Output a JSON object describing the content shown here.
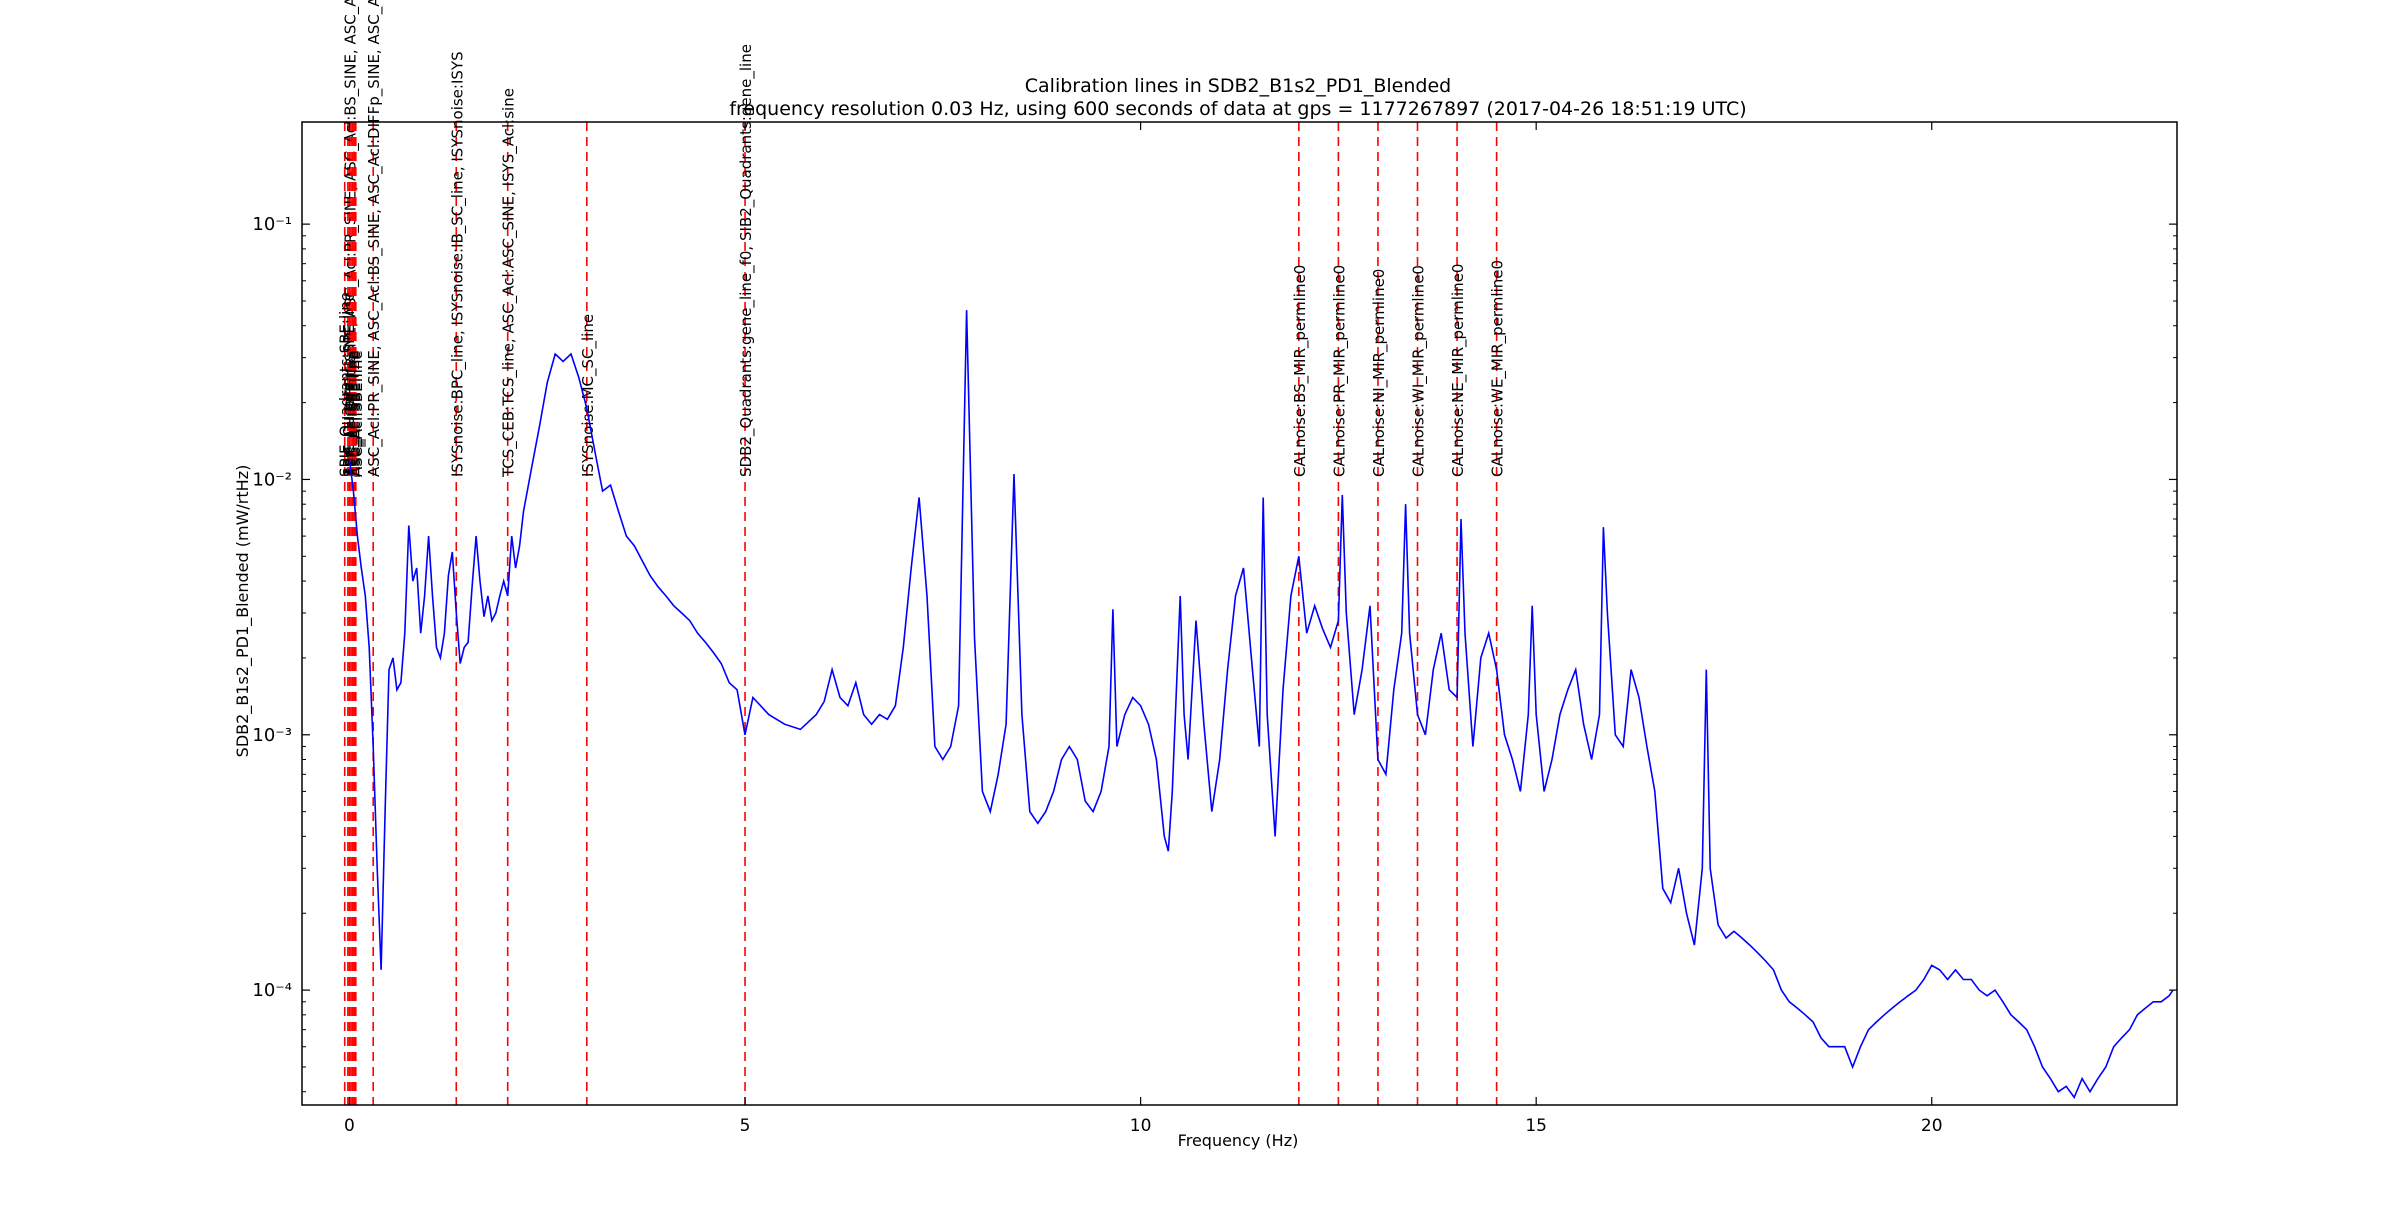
{
  "chart_data": {
    "type": "line",
    "title": "Calibration lines in SDB2_B1s2_PD1_Blended",
    "subtitle": "frequency resolution 0.03 Hz, using 600 seconds of data at gps = 1177267897 (2017-04-26 18:51:19 UTC)",
    "xlabel": "Frequency (Hz)",
    "ylabel": "SDB2_B1s2_PD1_Blended (mW/rtHz)",
    "xlim": [
      -0.6,
      23.1
    ],
    "ylim_log10": [
      -4.45,
      -0.6
    ],
    "yscale": "log",
    "grid": false,
    "x_ticks": [
      0,
      5,
      10,
      15,
      20
    ],
    "x_tick_labels": [
      "0",
      "5",
      "10",
      "15",
      "20"
    ],
    "y_ticks_log10": [
      -4,
      -3,
      -2,
      -1
    ],
    "y_tick_labels": [
      "10⁻⁴",
      "10⁻³",
      "10⁻²",
      "10⁻¹"
    ],
    "line_color": "#0000ff",
    "marker_color": "#ff0000",
    "series": [
      {
        "points": [
          [
            0.0,
            0.012
          ],
          [
            0.05,
            0.009
          ],
          [
            0.1,
            0.006
          ],
          [
            0.15,
            0.0045
          ],
          [
            0.2,
            0.0035
          ],
          [
            0.25,
            0.0022
          ],
          [
            0.3,
            0.0009
          ],
          [
            0.35,
            0.0003
          ],
          [
            0.4,
            0.00012
          ],
          [
            0.45,
            0.0005
          ],
          [
            0.5,
            0.0018
          ],
          [
            0.55,
            0.002
          ],
          [
            0.6,
            0.0015
          ],
          [
            0.65,
            0.0016
          ],
          [
            0.7,
            0.0025
          ],
          [
            0.75,
            0.0066
          ],
          [
            0.8,
            0.004
          ],
          [
            0.85,
            0.0045
          ],
          [
            0.9,
            0.0025
          ],
          [
            0.95,
            0.0035
          ],
          [
            1.0,
            0.006
          ],
          [
            1.05,
            0.0035
          ],
          [
            1.1,
            0.0022
          ],
          [
            1.15,
            0.002
          ],
          [
            1.2,
            0.0025
          ],
          [
            1.25,
            0.0042
          ],
          [
            1.3,
            0.0052
          ],
          [
            1.35,
            0.003
          ],
          [
            1.4,
            0.0019
          ],
          [
            1.45,
            0.0022
          ],
          [
            1.5,
            0.0023
          ],
          [
            1.55,
            0.0038
          ],
          [
            1.6,
            0.006
          ],
          [
            1.65,
            0.004
          ],
          [
            1.7,
            0.0029
          ],
          [
            1.75,
            0.0035
          ],
          [
            1.8,
            0.0028
          ],
          [
            1.85,
            0.003
          ],
          [
            1.9,
            0.0035
          ],
          [
            1.95,
            0.004
          ],
          [
            2.0,
            0.0035
          ],
          [
            2.05,
            0.006
          ],
          [
            2.1,
            0.0045
          ],
          [
            2.15,
            0.0055
          ],
          [
            2.2,
            0.0075
          ],
          [
            2.3,
            0.011
          ],
          [
            2.4,
            0.016
          ],
          [
            2.5,
            0.024
          ],
          [
            2.6,
            0.031
          ],
          [
            2.7,
            0.029
          ],
          [
            2.8,
            0.031
          ],
          [
            2.9,
            0.025
          ],
          [
            3.0,
            0.019
          ],
          [
            3.1,
            0.013
          ],
          [
            3.2,
            0.009
          ],
          [
            3.3,
            0.0095
          ],
          [
            3.4,
            0.0075
          ],
          [
            3.5,
            0.006
          ],
          [
            3.6,
            0.0055
          ],
          [
            3.7,
            0.0048
          ],
          [
            3.8,
            0.0042
          ],
          [
            3.9,
            0.0038
          ],
          [
            4.0,
            0.0035
          ],
          [
            4.1,
            0.0032
          ],
          [
            4.2,
            0.003
          ],
          [
            4.3,
            0.0028
          ],
          [
            4.4,
            0.0025
          ],
          [
            4.5,
            0.0023
          ],
          [
            4.6,
            0.0021
          ],
          [
            4.7,
            0.0019
          ],
          [
            4.8,
            0.0016
          ],
          [
            4.9,
            0.0015
          ],
          [
            5.0,
            0.001
          ],
          [
            5.1,
            0.0014
          ],
          [
            5.3,
            0.0012
          ],
          [
            5.5,
            0.0011
          ],
          [
            5.7,
            0.00105
          ],
          [
            5.9,
            0.0012
          ],
          [
            6.0,
            0.00135
          ],
          [
            6.1,
            0.0018
          ],
          [
            6.2,
            0.0014
          ],
          [
            6.3,
            0.0013
          ],
          [
            6.4,
            0.0016
          ],
          [
            6.5,
            0.0012
          ],
          [
            6.6,
            0.0011
          ],
          [
            6.7,
            0.0012
          ],
          [
            6.8,
            0.00115
          ],
          [
            6.9,
            0.0013
          ],
          [
            7.0,
            0.0022
          ],
          [
            7.1,
            0.0045
          ],
          [
            7.2,
            0.0085
          ],
          [
            7.3,
            0.0035
          ],
          [
            7.4,
            0.0009
          ],
          [
            7.5,
            0.0008
          ],
          [
            7.6,
            0.0009
          ],
          [
            7.7,
            0.0013
          ],
          [
            7.8,
            0.046
          ],
          [
            7.9,
            0.0024
          ],
          [
            8.0,
            0.0006
          ],
          [
            8.1,
            0.0005
          ],
          [
            8.2,
            0.0007
          ],
          [
            8.3,
            0.0011
          ],
          [
            8.4,
            0.0105
          ],
          [
            8.5,
            0.0012
          ],
          [
            8.6,
            0.0005
          ],
          [
            8.7,
            0.00045
          ],
          [
            8.8,
            0.0005
          ],
          [
            8.9,
            0.0006
          ],
          [
            9.0,
            0.0008
          ],
          [
            9.1,
            0.0009
          ],
          [
            9.2,
            0.0008
          ],
          [
            9.3,
            0.00055
          ],
          [
            9.4,
            0.0005
          ],
          [
            9.5,
            0.0006
          ],
          [
            9.6,
            0.0009
          ],
          [
            9.65,
            0.0031
          ],
          [
            9.7,
            0.0009
          ],
          [
            9.8,
            0.0012
          ],
          [
            9.9,
            0.0014
          ],
          [
            10.0,
            0.0013
          ],
          [
            10.1,
            0.0011
          ],
          [
            10.2,
            0.0008
          ],
          [
            10.3,
            0.0004
          ],
          [
            10.35,
            0.00035
          ],
          [
            10.4,
            0.0006
          ],
          [
            10.5,
            0.0035
          ],
          [
            10.55,
            0.0012
          ],
          [
            10.6,
            0.0008
          ],
          [
            10.7,
            0.0028
          ],
          [
            10.8,
            0.0011
          ],
          [
            10.9,
            0.0005
          ],
          [
            11.0,
            0.0008
          ],
          [
            11.1,
            0.0018
          ],
          [
            11.2,
            0.0035
          ],
          [
            11.3,
            0.0045
          ],
          [
            11.4,
            0.002
          ],
          [
            11.5,
            0.0009
          ],
          [
            11.55,
            0.0085
          ],
          [
            11.6,
            0.0012
          ],
          [
            11.7,
            0.0004
          ],
          [
            11.8,
            0.0015
          ],
          [
            11.9,
            0.0035
          ],
          [
            12.0,
            0.005
          ],
          [
            12.1,
            0.0025
          ],
          [
            12.2,
            0.0032
          ],
          [
            12.3,
            0.0026
          ],
          [
            12.4,
            0.0022
          ],
          [
            12.5,
            0.0028
          ],
          [
            12.55,
            0.0087
          ],
          [
            12.6,
            0.003
          ],
          [
            12.7,
            0.0012
          ],
          [
            12.8,
            0.0018
          ],
          [
            12.9,
            0.0032
          ],
          [
            13.0,
            0.0008
          ],
          [
            13.1,
            0.0007
          ],
          [
            13.2,
            0.0015
          ],
          [
            13.3,
            0.0025
          ],
          [
            13.35,
            0.008
          ],
          [
            13.4,
            0.0025
          ],
          [
            13.5,
            0.0012
          ],
          [
            13.6,
            0.001
          ],
          [
            13.7,
            0.0018
          ],
          [
            13.8,
            0.0025
          ],
          [
            13.9,
            0.0015
          ],
          [
            14.0,
            0.0014
          ],
          [
            14.05,
            0.007
          ],
          [
            14.1,
            0.0025
          ],
          [
            14.2,
            0.0009
          ],
          [
            14.3,
            0.002
          ],
          [
            14.4,
            0.0025
          ],
          [
            14.5,
            0.0018
          ],
          [
            14.6,
            0.001
          ],
          [
            14.7,
            0.0008
          ],
          [
            14.8,
            0.0006
          ],
          [
            14.9,
            0.0012
          ],
          [
            14.95,
            0.0032
          ],
          [
            15.0,
            0.0012
          ],
          [
            15.1,
            0.0006
          ],
          [
            15.2,
            0.0008
          ],
          [
            15.3,
            0.0012
          ],
          [
            15.4,
            0.0015
          ],
          [
            15.5,
            0.0018
          ],
          [
            15.6,
            0.0011
          ],
          [
            15.7,
            0.0008
          ],
          [
            15.8,
            0.0012
          ],
          [
            15.85,
            0.0065
          ],
          [
            15.9,
            0.003
          ],
          [
            16.0,
            0.001
          ],
          [
            16.1,
            0.0009
          ],
          [
            16.2,
            0.0018
          ],
          [
            16.3,
            0.0014
          ],
          [
            16.4,
            0.0009
          ],
          [
            16.5,
            0.0006
          ],
          [
            16.6,
            0.00025
          ],
          [
            16.7,
            0.00022
          ],
          [
            16.8,
            0.0003
          ],
          [
            16.9,
            0.0002
          ],
          [
            17.0,
            0.00015
          ],
          [
            17.1,
            0.0003
          ],
          [
            17.15,
            0.0018
          ],
          [
            17.2,
            0.0003
          ],
          [
            17.3,
            0.00018
          ],
          [
            17.4,
            0.00016
          ],
          [
            17.5,
            0.00017
          ],
          [
            17.6,
            0.00016
          ],
          [
            17.7,
            0.00015
          ],
          [
            17.8,
            0.00014
          ],
          [
            17.9,
            0.00013
          ],
          [
            18.0,
            0.00012
          ],
          [
            18.1,
            0.0001
          ],
          [
            18.2,
            9e-05
          ],
          [
            18.3,
            8.5e-05
          ],
          [
            18.4,
            8e-05
          ],
          [
            18.5,
            7.5e-05
          ],
          [
            18.6,
            6.5e-05
          ],
          [
            18.7,
            6e-05
          ],
          [
            18.8,
            6e-05
          ],
          [
            18.9,
            6e-05
          ],
          [
            19.0,
            5e-05
          ],
          [
            19.1,
            6e-05
          ],
          [
            19.2,
            7e-05
          ],
          [
            19.3,
            7.5e-05
          ],
          [
            19.4,
            8e-05
          ],
          [
            19.5,
            8.5e-05
          ],
          [
            19.6,
            9e-05
          ],
          [
            19.7,
            9.5e-05
          ],
          [
            19.8,
            0.0001
          ],
          [
            19.9,
            0.00011
          ],
          [
            20.0,
            0.000125
          ],
          [
            20.1,
            0.00012
          ],
          [
            20.2,
            0.00011
          ],
          [
            20.3,
            0.00012
          ],
          [
            20.4,
            0.00011
          ],
          [
            20.5,
            0.00011
          ],
          [
            20.6,
            0.0001
          ],
          [
            20.7,
            9.5e-05
          ],
          [
            20.8,
            0.0001
          ],
          [
            20.9,
            9e-05
          ],
          [
            21.0,
            8e-05
          ],
          [
            21.1,
            7.5e-05
          ],
          [
            21.2,
            7e-05
          ],
          [
            21.3,
            6e-05
          ],
          [
            21.4,
            5e-05
          ],
          [
            21.5,
            4.5e-05
          ],
          [
            21.6,
            4e-05
          ],
          [
            21.7,
            4.2e-05
          ],
          [
            21.8,
            3.8e-05
          ],
          [
            21.9,
            4.5e-05
          ],
          [
            22.0,
            4e-05
          ],
          [
            22.1,
            4.5e-05
          ],
          [
            22.2,
            5e-05
          ],
          [
            22.3,
            6e-05
          ],
          [
            22.4,
            6.5e-05
          ],
          [
            22.5,
            7e-05
          ],
          [
            22.6,
            8e-05
          ],
          [
            22.7,
            8.5e-05
          ],
          [
            22.8,
            9e-05
          ],
          [
            22.9,
            9e-05
          ],
          [
            23.0,
            9.5e-05
          ],
          [
            23.05,
            0.0001
          ]
        ]
      }
    ],
    "markers": [
      {
        "x": -0.06,
        "label": "SPIE_Quadrants:SBE:line"
      },
      {
        "x": -0.02,
        "label": "SPIE_Quadrants:SBE:line"
      },
      {
        "x": 0.0,
        "label": "ASC_Acl:DIFFp_SINE, ASC_Acl:PR_SINE, ASC_Acl:BS_SINE, ASC_Acl:SBE:line"
      },
      {
        "x": 0.02,
        "label": "ASC_Acl:SBE:line"
      },
      {
        "x": 0.04,
        "label": "ASC_Acl:SBE:line"
      },
      {
        "x": 0.06,
        "label": "ASC_Acl:SBE:line"
      },
      {
        "x": 0.08,
        "label": "ASC_Acl:SBE:line"
      },
      {
        "x": 0.3,
        "label": "ASC_Acl:PR_SINE, ASC_Acl:BS_SINE, ASC_Acl:DIFFp_SINE, ASC_Acl:DIFFp_SINE"
      },
      {
        "x": 1.35,
        "label": "ISYSnoise:BPC_line, ISYSnoise:IB_SC_line, ISYSnoise:ISYS"
      },
      {
        "x": 2.0,
        "label": "TCS_CEB:TCS_line, ASC_Acl:ASC_SINE, ISYS_Acl:sine"
      },
      {
        "x": 3.0,
        "label": "ISYSnoise:MC_SC_line"
      },
      {
        "x": 5.0,
        "label": "SDB2_Quadrants:gene_line_f0, SIB2_Quadrants:gene_line"
      },
      {
        "x": 12.0,
        "label": "CALnoise:BS_MIR_permline0"
      },
      {
        "x": 12.5,
        "label": "CALnoise:PR_MIR_permline0"
      },
      {
        "x": 13.0,
        "label": "CALnoise:NI_MIR_permline0"
      },
      {
        "x": 13.5,
        "label": "CALnoise:WI_MIR_permline0"
      },
      {
        "x": 14.0,
        "label": "CALnoise:NE_MIR_permline0"
      },
      {
        "x": 14.5,
        "label": "CALnoise:WE_MIR_permline0"
      }
    ]
  }
}
